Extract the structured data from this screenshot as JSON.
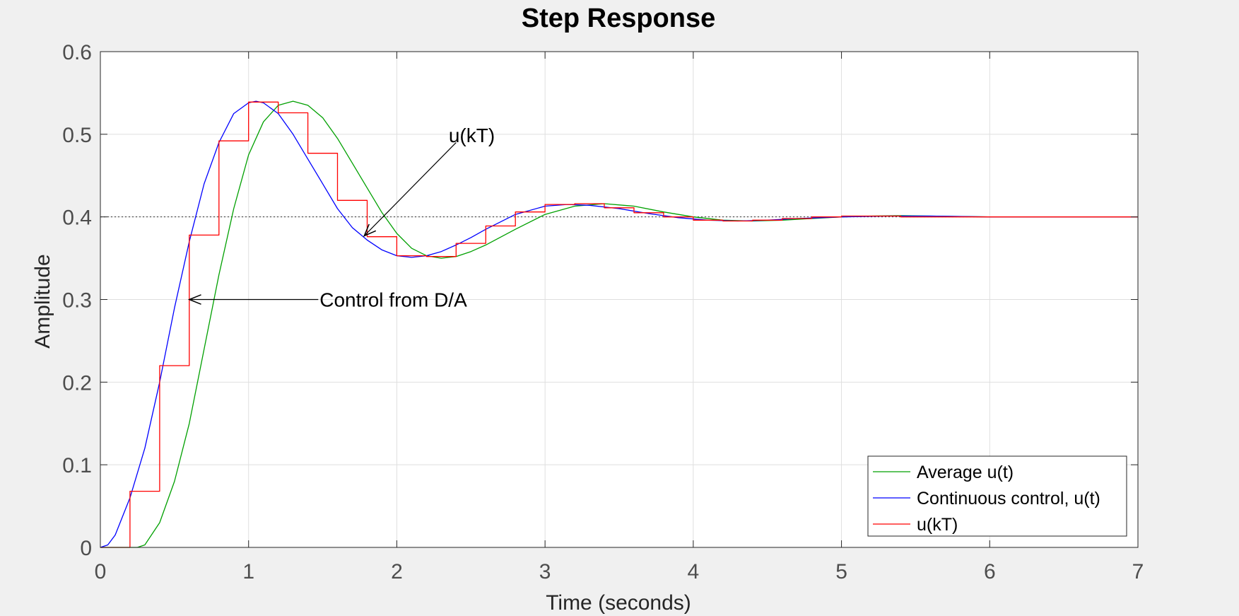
{
  "chart_data": {
    "type": "line",
    "title": "Step Response",
    "xlabel": "Time (seconds)",
    "ylabel": "Amplitude",
    "xlim": [
      0,
      7
    ],
    "ylim": [
      0,
      0.6
    ],
    "xticks": [
      "0",
      "1",
      "2",
      "3",
      "4",
      "5",
      "6",
      "7"
    ],
    "yticks": [
      "0",
      "0.1",
      "0.2",
      "0.3",
      "0.4",
      "0.5",
      "0.6"
    ],
    "grid": true,
    "steady_state": 0.4,
    "legend_position": "bottom-right",
    "series": [
      {
        "name": "Average u(t)",
        "color": "#00a000",
        "style": "line",
        "x": [
          0,
          0.25,
          0.3,
          0.4,
          0.5,
          0.6,
          0.7,
          0.8,
          0.9,
          1.0,
          1.1,
          1.2,
          1.3,
          1.4,
          1.5,
          1.6,
          1.7,
          1.8,
          1.9,
          2.0,
          2.1,
          2.2,
          2.3,
          2.4,
          2.5,
          2.6,
          2.8,
          3.0,
          3.2,
          3.4,
          3.6,
          3.8,
          4.0,
          4.2,
          4.4,
          4.6,
          4.8,
          5.0,
          5.2,
          5.4,
          5.6,
          5.8,
          6.0,
          6.5,
          7.0
        ],
        "y": [
          0,
          0,
          0.003,
          0.03,
          0.08,
          0.15,
          0.24,
          0.33,
          0.41,
          0.475,
          0.515,
          0.535,
          0.54,
          0.535,
          0.52,
          0.495,
          0.465,
          0.435,
          0.405,
          0.38,
          0.362,
          0.353,
          0.35,
          0.352,
          0.358,
          0.366,
          0.385,
          0.403,
          0.413,
          0.416,
          0.413,
          0.406,
          0.4,
          0.396,
          0.395,
          0.396,
          0.398,
          0.4,
          0.401,
          0.4015,
          0.401,
          0.4005,
          0.4,
          0.4,
          0.4
        ]
      },
      {
        "name": "Continuous control, u(t)",
        "color": "#0000ff",
        "style": "line",
        "x": [
          0,
          0.05,
          0.1,
          0.2,
          0.3,
          0.4,
          0.5,
          0.6,
          0.7,
          0.8,
          0.9,
          1.0,
          1.05,
          1.1,
          1.2,
          1.3,
          1.4,
          1.5,
          1.6,
          1.7,
          1.8,
          1.9,
          2.0,
          2.1,
          2.2,
          2.3,
          2.4,
          2.5,
          2.6,
          2.8,
          3.0,
          3.15,
          3.3,
          3.5,
          3.7,
          3.9,
          4.1,
          4.3,
          4.5,
          4.7,
          5.0,
          5.3,
          5.6,
          6.0,
          6.5,
          7.0
        ],
        "y": [
          0,
          0.003,
          0.015,
          0.06,
          0.12,
          0.2,
          0.29,
          0.37,
          0.44,
          0.49,
          0.525,
          0.538,
          0.54,
          0.538,
          0.525,
          0.5,
          0.47,
          0.44,
          0.41,
          0.387,
          0.372,
          0.36,
          0.353,
          0.351,
          0.353,
          0.358,
          0.366,
          0.375,
          0.385,
          0.403,
          0.413,
          0.415,
          0.414,
          0.41,
          0.404,
          0.399,
          0.396,
          0.395,
          0.396,
          0.398,
          0.4,
          0.401,
          0.401,
          0.4,
          0.4,
          0.4
        ]
      },
      {
        "name": "u(kT)",
        "color": "#ff0000",
        "style": "stairs",
        "x": [
          0,
          0.2,
          0.4,
          0.6,
          0.8,
          1.0,
          1.2,
          1.4,
          1.6,
          1.8,
          2.0,
          2.2,
          2.4,
          2.6,
          2.8,
          3.0,
          3.2,
          3.4,
          3.6,
          3.8,
          4.0,
          4.2,
          4.4,
          4.6,
          4.8,
          5.0,
          5.2,
          5.4,
          5.6,
          5.8,
          6.0,
          6.2,
          6.4,
          6.6,
          6.8,
          7.0
        ],
        "y": [
          0,
          0.068,
          0.22,
          0.378,
          0.492,
          0.539,
          0.526,
          0.477,
          0.42,
          0.376,
          0.353,
          0.352,
          0.368,
          0.389,
          0.406,
          0.415,
          0.416,
          0.411,
          0.405,
          0.4,
          0.396,
          0.395,
          0.396,
          0.398,
          0.4,
          0.401,
          0.401,
          0.4,
          0.4,
          0.4,
          0.4,
          0.4,
          0.4,
          0.4,
          0.4,
          0.4
        ]
      }
    ],
    "annotations": [
      {
        "text": "u(kT)",
        "text_at": [
          2.35,
          0.5
        ],
        "arrow_from": [
          2.4,
          0.49
        ],
        "arrow_to": [
          1.78,
          0.377
        ]
      },
      {
        "text": "Control from D/A",
        "text_at": [
          1.47,
          0.3
        ],
        "arrow_from": [
          1.47,
          0.3
        ],
        "arrow_to": [
          0.6,
          0.3
        ]
      }
    ]
  }
}
